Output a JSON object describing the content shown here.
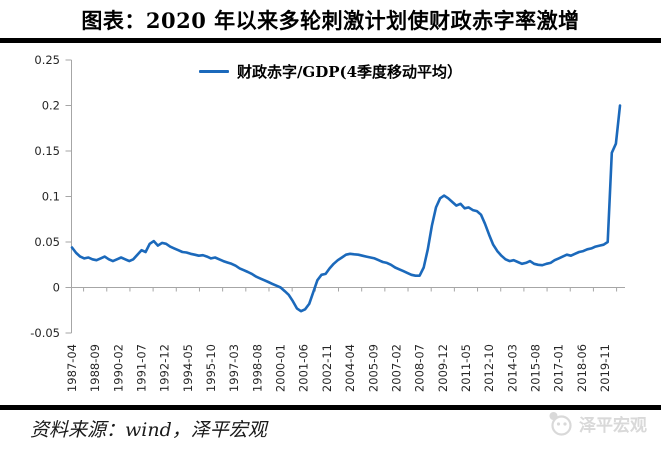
{
  "title": "图表：2020 年以来多轮刺激计划使财政赤字率激增",
  "legend": {
    "label": "财政赤字/GDP(4季度移动平均）"
  },
  "footer": {
    "source": "资料来源：wind，泽平宏观",
    "watermark": "泽平宏观"
  },
  "colors": {
    "line": "#1b69bb",
    "axis": "#a6a6a6",
    "tick_text": "#262626",
    "rule": "#000000",
    "watermark": "#d9d9d9"
  },
  "chart_data": {
    "type": "line",
    "title": "图表：2020 年以来多轮刺激计划使财政赤字率激增",
    "xlabel": "",
    "ylabel": "",
    "legend_position": "top",
    "grid": false,
    "ylim": [
      -0.05,
      0.25
    ],
    "y_ticks": [
      -0.05,
      0,
      0.05,
      0.1,
      0.15,
      0.2,
      0.25
    ],
    "start_month": "1987-04",
    "step_months": 3,
    "x_tick_interval_months": 17,
    "x_tick_labels": [
      "1987-04",
      "1988-09",
      "1990-02",
      "1991-07",
      "1992-12",
      "1994-05",
      "1995-10",
      "1997-03",
      "1998-08",
      "2000-01",
      "2001-06",
      "2002-11",
      "2004-04",
      "2005-09",
      "2007-02",
      "2008-07",
      "2009-12",
      "2011-05",
      "2012-10",
      "2014-03",
      "2015-08",
      "2017-01",
      "2018-06",
      "2019-11"
    ],
    "series": [
      {
        "name": "财政赤字/GDP(4季度移动平均）",
        "values": [
          0.044,
          0.038,
          0.034,
          0.032,
          0.033,
          0.031,
          0.03,
          0.032,
          0.034,
          0.031,
          0.029,
          0.031,
          0.033,
          0.031,
          0.029,
          0.031,
          0.036,
          0.041,
          0.039,
          0.048,
          0.051,
          0.046,
          0.049,
          0.048,
          0.045,
          0.043,
          0.041,
          0.039,
          0.0385,
          0.037,
          0.036,
          0.035,
          0.0355,
          0.034,
          0.032,
          0.033,
          0.031,
          0.029,
          0.0275,
          0.026,
          0.024,
          0.021,
          0.019,
          0.017,
          0.015,
          0.012,
          0.01,
          0.008,
          0.006,
          0.004,
          0.002,
          0.0,
          -0.004,
          -0.008,
          -0.015,
          -0.023,
          -0.026,
          -0.024,
          -0.018,
          -0.005,
          0.008,
          0.014,
          0.015,
          0.021,
          0.026,
          0.03,
          0.033,
          0.036,
          0.037,
          0.0365,
          0.036,
          0.035,
          0.034,
          0.033,
          0.032,
          0.03,
          0.028,
          0.027,
          0.025,
          0.022,
          0.02,
          0.018,
          0.016,
          0.014,
          0.013,
          0.013,
          0.022,
          0.042,
          0.068,
          0.088,
          0.098,
          0.101,
          0.098,
          0.094,
          0.09,
          0.092,
          0.087,
          0.088,
          0.085,
          0.084,
          0.08,
          0.07,
          0.058,
          0.047,
          0.04,
          0.035,
          0.031,
          0.029,
          0.03,
          0.028,
          0.026,
          0.027,
          0.029,
          0.026,
          0.025,
          0.0245,
          0.026,
          0.027,
          0.03,
          0.032,
          0.034,
          0.036,
          0.035,
          0.037,
          0.039,
          0.04,
          0.042,
          0.043,
          0.045,
          0.046,
          0.047,
          0.05,
          0.148,
          0.158,
          0.2
        ]
      }
    ]
  }
}
